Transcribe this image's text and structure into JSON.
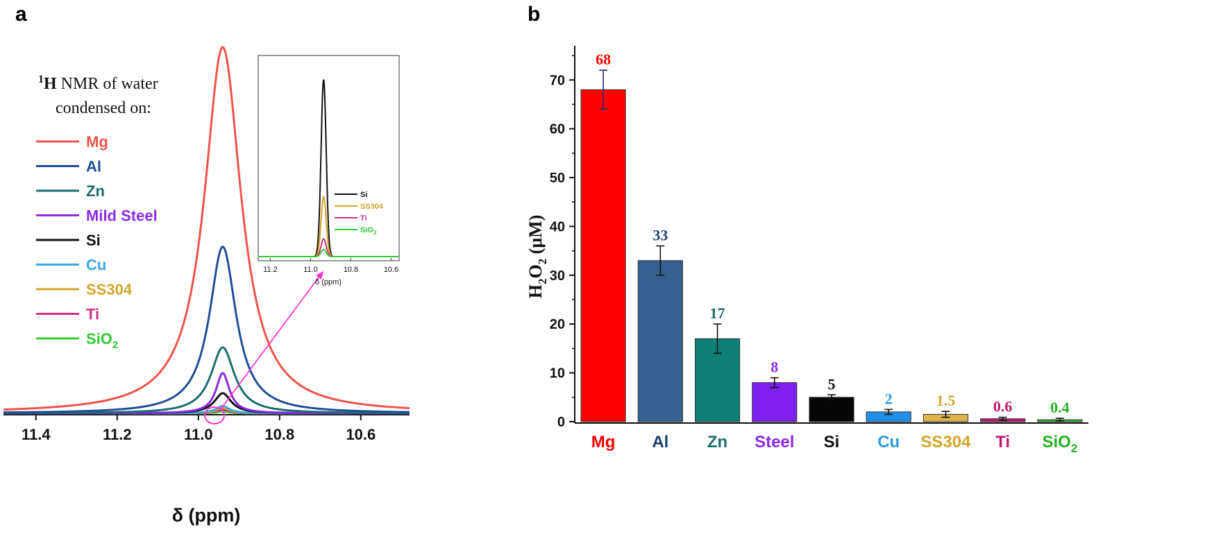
{
  "panels": {
    "a_letter": "a",
    "b_letter": "b"
  },
  "chart_data": [
    {
      "type": "line",
      "panel": "a",
      "title_prefix": "1",
      "title_bold": "H",
      "title_rest": " NMR of water",
      "title_line2": "condensed on:",
      "xlabel": "δ (ppm)",
      "x_reversed": true,
      "xlim": [
        11.48,
        10.48
      ],
      "xticks": [
        "11.4",
        "11.2",
        "11.0",
        "10.8",
        "10.6"
      ],
      "xtick_values": [
        11.4,
        11.2,
        11.0,
        10.8,
        10.6
      ],
      "peak_center": 10.94,
      "series": [
        {
          "name": "Mg",
          "color": "#f0524a",
          "peak_height": 1.0,
          "width": 0.055
        },
        {
          "name": "Al",
          "color": "#1f4e96",
          "peak_height": 0.455,
          "width": 0.04
        },
        {
          "name": "Zn",
          "color": "#1a6e6a",
          "peak_height": 0.18,
          "width": 0.035
        },
        {
          "name": "Mild Steel",
          "color": "#8a2be2",
          "peak_height": 0.11,
          "width": 0.02
        },
        {
          "name": "Si",
          "color": "#111111",
          "peak_height": 0.055,
          "width": 0.025
        },
        {
          "name": "Cu",
          "color": "#3aa6dd",
          "peak_height": 0.02,
          "width": 0.02
        },
        {
          "name": "SS304",
          "color": "#d4a52a",
          "peak_height": 0.015,
          "width": 0.02
        },
        {
          "name": "Ti",
          "color": "#d0307f",
          "peak_height": 0.01,
          "width": 0.02
        },
        {
          "name": "SiO",
          "sub": "2",
          "color": "#2ecc2e",
          "peak_height": 0.005,
          "width": 0.02
        }
      ],
      "inset": {
        "xlabel": "δ (ppm)",
        "xticks": [
          "11.2",
          "11.0",
          "10.8",
          "10.6"
        ],
        "xtick_values": [
          11.2,
          11.0,
          10.8,
          10.6
        ],
        "xlim": [
          11.26,
          10.56
        ],
        "series": [
          {
            "name": "Si",
            "color": "#111111",
            "peak_height": 1.0
          },
          {
            "name": "SS304",
            "color": "#d4a52a",
            "peak_height": 0.34
          },
          {
            "name": "Ti",
            "color": "#d0307f",
            "peak_height": 0.1
          },
          {
            "name": "SiO",
            "sub": "2",
            "color": "#2ecc2e",
            "peak_height": 0.04
          }
        ]
      }
    },
    {
      "type": "bar",
      "panel": "b",
      "ylabel_main": "H",
      "ylabel_sub1": "2",
      "ylabel_mid": "O",
      "ylabel_sub2": "2",
      "ylabel_unit": " (μM)",
      "ylim": [
        0,
        77
      ],
      "yticks": [
        0,
        10,
        20,
        30,
        40,
        50,
        60,
        70
      ],
      "categories": [
        "Mg",
        "Al",
        "Zn",
        "Steel",
        "Si",
        "Cu",
        "SS304",
        "Ti",
        "SiO"
      ],
      "category_subs": [
        "",
        "",
        "",
        "",
        "",
        "",
        "",
        "",
        "2"
      ],
      "values": [
        68,
        33,
        17,
        8,
        5,
        2,
        1.5,
        0.6,
        0.4
      ],
      "value_labels": [
        "68",
        "33",
        "17",
        "8",
        "5",
        "2",
        "1.5",
        "0.6",
        "0.4"
      ],
      "errors": [
        4,
        3,
        3,
        1,
        0.5,
        0.5,
        0.6,
        0.3,
        0.3
      ],
      "bar_colors": [
        "#ff0000",
        "#33608f",
        "#0e8077",
        "#7f1ff0",
        "#050505",
        "#1e90e6",
        "#e0b34a",
        "#c2186d",
        "#1fc21f"
      ],
      "label_colors": [
        "#ff0000",
        "#1c3f6e",
        "#1a6e6a",
        "#8a2be2",
        "#111111",
        "#2a9bd8",
        "#d4a52a",
        "#c2186d",
        "#22b022"
      ]
    }
  ]
}
